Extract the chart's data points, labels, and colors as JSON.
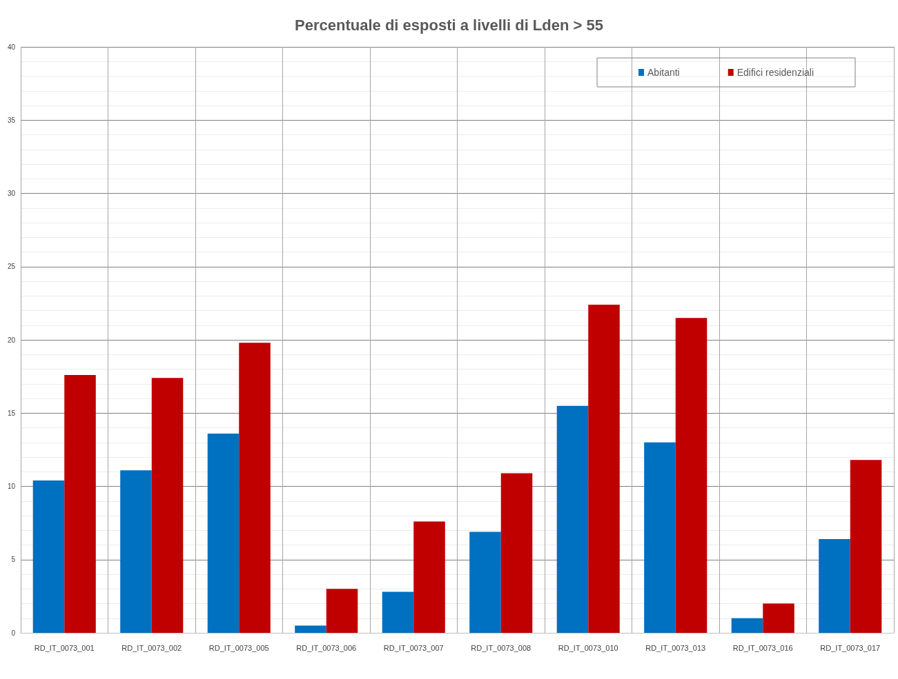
{
  "chart_data": {
    "type": "bar",
    "title": "Percentuale di esposti a livelli di Lden > 55",
    "categories": [
      "RD_IT_0073_001",
      "RD_IT_0073_002",
      "RD_IT_0073_005",
      "RD_IT_0073_006",
      "RD_IT_0073_007",
      "RD_IT_0073_008",
      "RD_IT_0073_010",
      "RD_IT_0073_013",
      "RD_IT_0073_016",
      "RD_IT_0073_017"
    ],
    "series": [
      {
        "name": "Abitanti",
        "color": "#0070c0",
        "values": [
          10.4,
          11.1,
          13.6,
          0.5,
          2.8,
          6.9,
          15.5,
          13.0,
          1.0,
          6.4
        ]
      },
      {
        "name": "Edifici residenziali",
        "color": "#c00000",
        "values": [
          17.6,
          17.4,
          19.8,
          3.0,
          7.6,
          10.9,
          22.4,
          21.5,
          2.0,
          11.8
        ]
      }
    ],
    "ylim": [
      0,
      40
    ],
    "yticks": [
      0,
      5,
      10,
      15,
      20,
      25,
      30,
      35,
      40
    ],
    "grid": true,
    "legend": "top right"
  }
}
